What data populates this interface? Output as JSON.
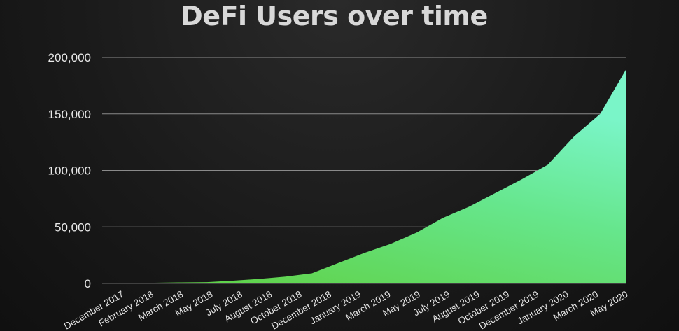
{
  "chart_data": {
    "type": "area",
    "title": "DeFi Users over time",
    "xlabel": "",
    "ylabel": "",
    "ylim": [
      0,
      200000
    ],
    "yticks": [
      0,
      50000,
      100000,
      150000,
      200000
    ],
    "ytick_labels": [
      "0",
      "50,000",
      "100,000",
      "150,000",
      "200,000"
    ],
    "xtick_labels": [
      "December 2017",
      "February 2018",
      "March 2018",
      "May 2018",
      "July 2018",
      "August 2018",
      "October 2018",
      "December 2018",
      "January 2019",
      "March 2019",
      "May 2019",
      "July 2019",
      "August 2019",
      "October 2019",
      "December 2019",
      "January 2020",
      "March 2020",
      "May 2020"
    ],
    "grid": true,
    "gradient_colors": [
      "#5fcf3f",
      "#66e68c",
      "#7af5c8"
    ],
    "series": [
      {
        "values": [
          0,
          300,
          600,
          900,
          1200,
          2500,
          4000,
          6000,
          9000,
          18000,
          27000,
          35000,
          45000,
          58000,
          68000,
          80000,
          92000,
          105000,
          130000,
          150000,
          190000
        ]
      }
    ]
  }
}
